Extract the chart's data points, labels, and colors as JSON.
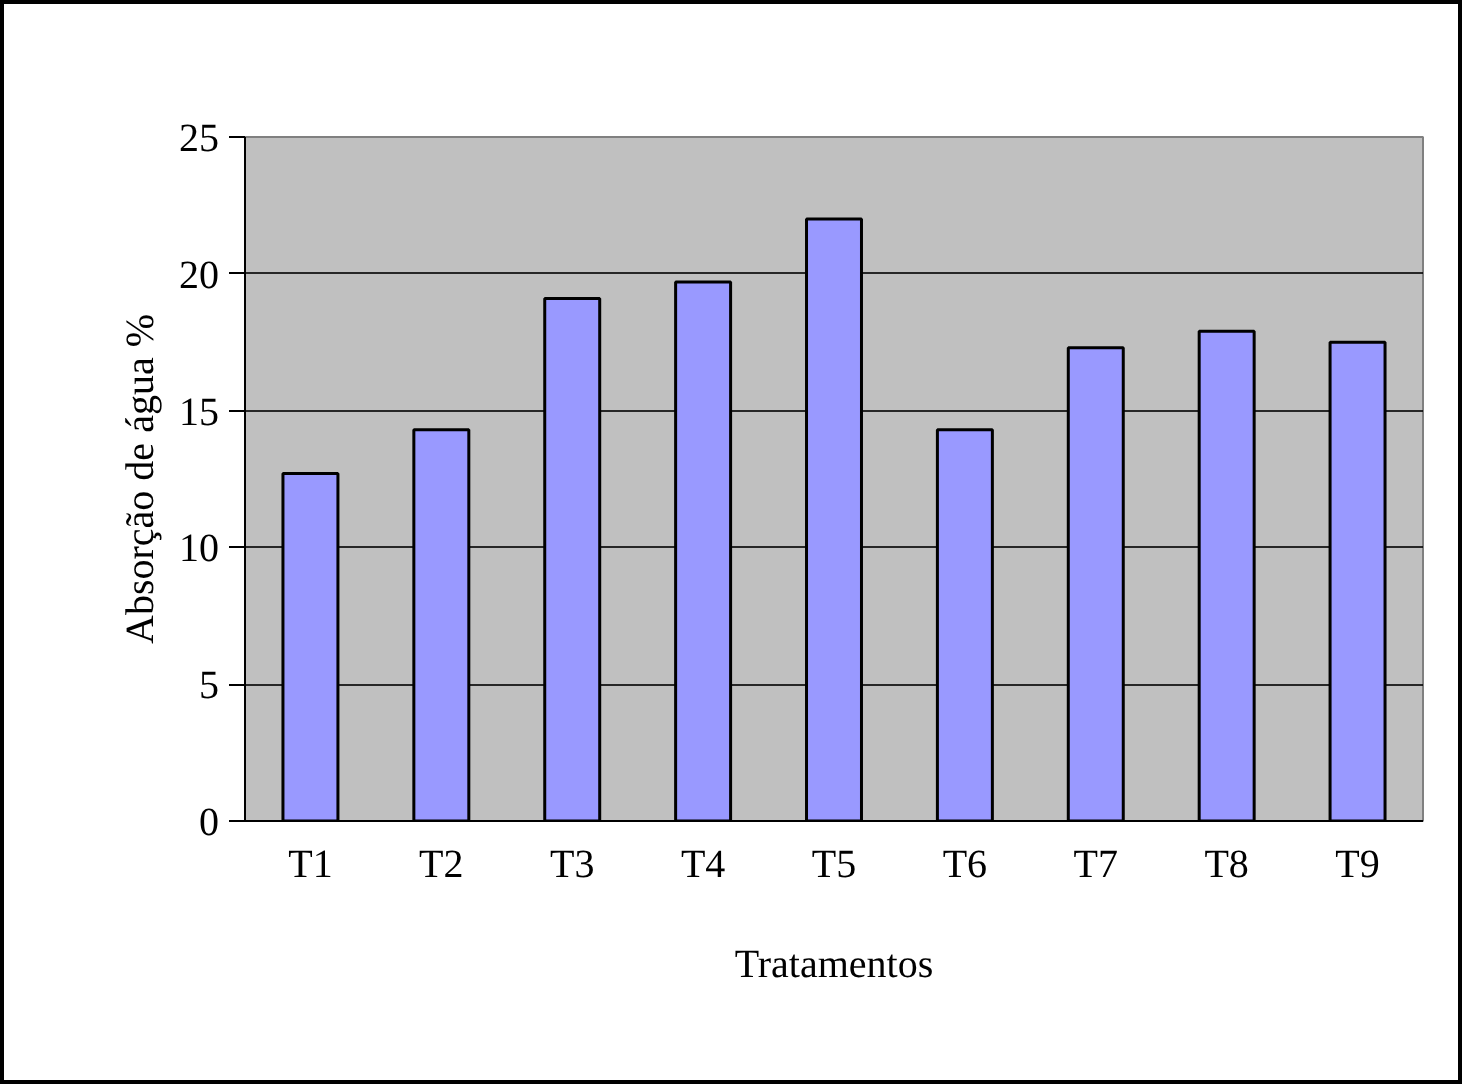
{
  "chart_data": {
    "type": "bar",
    "xlabel": "Tratamentos",
    "ylabel": "Absorção de água %",
    "categories": [
      "T1",
      "T2",
      "T3",
      "T4",
      "T5",
      "T6",
      "T7",
      "T8",
      "T9"
    ],
    "values": [
      12.7,
      14.3,
      19.1,
      19.7,
      22.0,
      14.3,
      17.3,
      17.9,
      17.5
    ],
    "color": "#9999ff",
    "ylim": [
      0,
      25
    ],
    "yticks": [
      0,
      5,
      10,
      15,
      20,
      25
    ],
    "grid": "y"
  }
}
